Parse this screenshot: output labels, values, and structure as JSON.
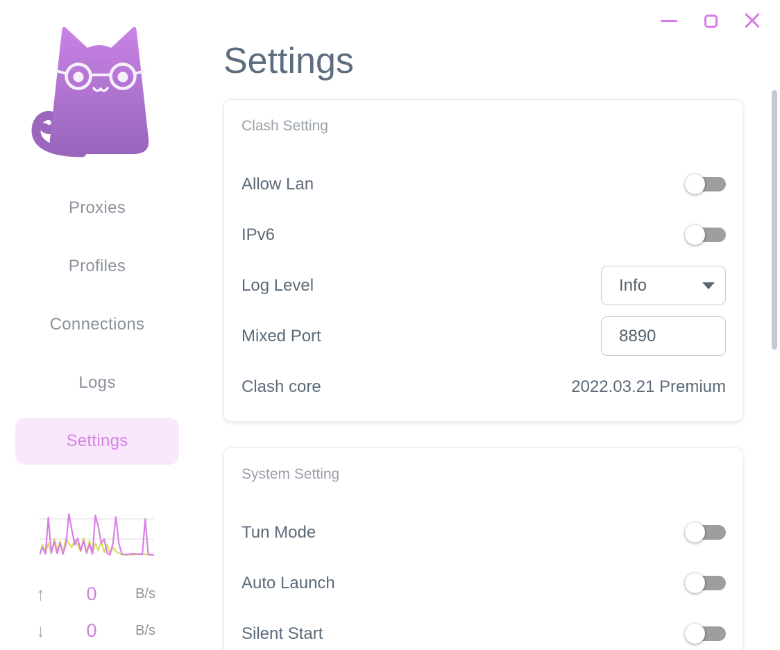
{
  "window": {
    "controls": {
      "minimize": "minimize",
      "maximize": "maximize",
      "close": "close"
    },
    "accent_color": "#d57ce8"
  },
  "sidebar": {
    "items": [
      {
        "label": "Proxies",
        "active": false
      },
      {
        "label": "Profiles",
        "active": false
      },
      {
        "label": "Connections",
        "active": false
      },
      {
        "label": "Logs",
        "active": false
      },
      {
        "label": "Settings",
        "active": true
      }
    ],
    "active_bg": "#f9e8fb",
    "active_color": "#d583e3",
    "traffic": {
      "upload": {
        "icon": "arrow-up",
        "value": "0",
        "unit": "B/s"
      },
      "download": {
        "icon": "arrow-down",
        "value": "0",
        "unit": "B/s"
      }
    }
  },
  "page": {
    "title": "Settings"
  },
  "cards": [
    {
      "header": "Clash Setting",
      "rows": [
        {
          "label": "Allow Lan",
          "type": "toggle",
          "value": false
        },
        {
          "label": "IPv6",
          "type": "toggle",
          "value": false
        },
        {
          "label": "Log Level",
          "type": "select",
          "value": "Info"
        },
        {
          "label": "Mixed Port",
          "type": "input",
          "value": "8890"
        },
        {
          "label": "Clash core",
          "type": "text",
          "value": "2022.03.21 Premium"
        }
      ]
    },
    {
      "header": "System Setting",
      "rows": [
        {
          "label": "Tun Mode",
          "type": "toggle",
          "value": false
        },
        {
          "label": "Auto Launch",
          "type": "toggle",
          "value": false
        },
        {
          "label": "Silent Start",
          "type": "toggle",
          "value": false
        }
      ]
    }
  ],
  "chart_data": {
    "type": "line",
    "title": "traffic-sparkline",
    "x": "time (ticks, unlabeled)",
    "ylabel": "traffic (unlabeled)",
    "grid": "two horizontal gridlines",
    "legend": "none",
    "series": [
      {
        "name": "upload",
        "color": "#d980e6",
        "values": [
          3,
          20,
          4,
          92,
          6,
          34,
          5,
          30,
          4,
          28,
          100,
          62,
          26,
          42,
          12,
          36,
          6,
          28,
          4,
          97,
          70,
          30,
          40,
          6,
          2,
          30,
          93,
          30,
          4,
          3,
          3,
          4,
          5,
          4,
          3,
          3,
          88,
          4,
          2,
          2
        ]
      },
      {
        "name": "download",
        "color": "#d5de62",
        "values": [
          2,
          26,
          8,
          30,
          6,
          40,
          12,
          34,
          8,
          42,
          30,
          20,
          38,
          26,
          10,
          42,
          8,
          36,
          6,
          30,
          12,
          34,
          8,
          28,
          4,
          20,
          10,
          6,
          3,
          2,
          2,
          3,
          2,
          4,
          5,
          4,
          3,
          2,
          2,
          2
        ]
      }
    ]
  },
  "colors": {
    "title": "#5d6d7d",
    "label": "#5b6a79",
    "card_header": "#9aa0a8",
    "nav_inactive": "#8b919c",
    "toggle_track": "#9e9e9e",
    "logo_gradient_top": "#c983e6",
    "logo_gradient_bottom": "#9865bb"
  }
}
